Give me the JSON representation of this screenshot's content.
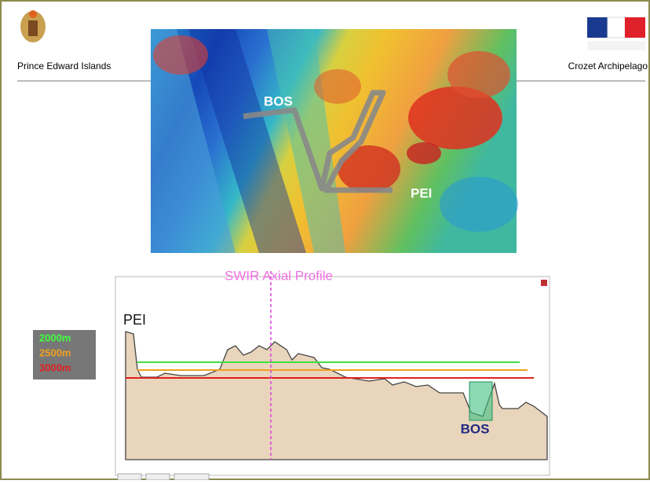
{
  "header": {
    "left_title": "Prince Edward Islands",
    "right_title": "Crozet Archipelago"
  },
  "map": {
    "labels": [
      "BOS",
      "PEI"
    ]
  },
  "profile": {
    "title": "SWIR Axial Profile",
    "start_label": "PEI",
    "feature_label": "BOS",
    "legend": [
      "2000m",
      "2500m",
      "3000m"
    ]
  }
}
